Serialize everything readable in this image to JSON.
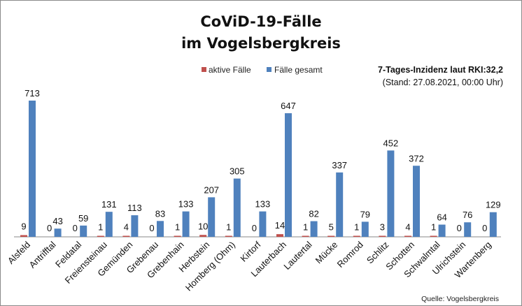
{
  "chart_data": {
    "type": "bar",
    "title": [
      "CoViD-19-Fälle",
      "im Vogelsbergkreis"
    ],
    "categories": [
      "Alsfeld",
      "Antrifftal",
      "Feldatal",
      "Freiensteinau",
      "Gemünden",
      "Grebenau",
      "Grebenhain",
      "Herbstein",
      "Homberg (Ohm)",
      "Kirtorf",
      "Lauterbach",
      "Lautertal",
      "Mücke",
      "Romrod",
      "Schlitz",
      "Schotten",
      "Schwalmtal",
      "Ulrichstein",
      "Wartenberg"
    ],
    "series": [
      {
        "name": "aktive Fälle",
        "color": "#c0504d",
        "values": [
          9,
          0,
          0,
          1,
          4,
          0,
          1,
          10,
          1,
          0,
          14,
          1,
          5,
          1,
          3,
          4,
          1,
          0,
          0
        ]
      },
      {
        "name": "Fälle gesamt",
        "color": "#4f81bd",
        "values": [
          713,
          43,
          59,
          131,
          113,
          83,
          133,
          207,
          305,
          133,
          647,
          82,
          337,
          79,
          452,
          372,
          64,
          76,
          129
        ]
      }
    ],
    "legend_position": "top-center",
    "grid": false,
    "annotation": [
      "7-Tages-Inzidenz laut RKI:32,2",
      "(Stand: 27.08.2021, 00:00 Uhr)"
    ],
    "source": "Quelle: Vogelsbergkreis"
  }
}
